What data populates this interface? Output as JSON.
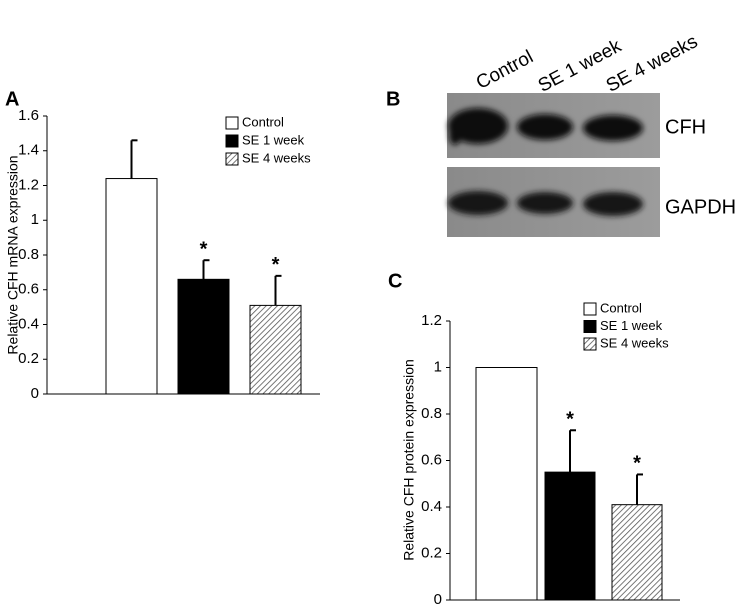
{
  "chart_data": [
    {
      "type": "bar",
      "panel_label": "A",
      "ylabel": "Relative CFH mRNA expression",
      "categories": [
        "Control",
        "SE 1 week",
        "SE 4 weeks"
      ],
      "values": [
        1.24,
        0.66,
        0.51
      ],
      "errors": [
        0.22,
        0.11,
        0.17
      ],
      "significance": [
        null,
        "*",
        "*"
      ],
      "colors": [
        "#ffffff",
        "#000000",
        "#ffffff"
      ],
      "hatch": [
        false,
        false,
        true
      ],
      "ylim": [
        0,
        1.6
      ],
      "yticks": [
        0,
        0.2,
        0.4,
        0.6,
        0.8,
        1,
        1.2,
        1.4,
        1.6
      ],
      "grid": false
    },
    {
      "type": "bar",
      "panel_label": "C",
      "ylabel": "Relative CFH protein expression",
      "categories": [
        "Control",
        "SE 1 week",
        "SE 4 weeks"
      ],
      "values": [
        1,
        0.55,
        0.41
      ],
      "errors": [
        null,
        0.18,
        0.13
      ],
      "significance": [
        null,
        "*",
        "*"
      ],
      "colors": [
        "#ffffff",
        "#000000",
        "#ffffff"
      ],
      "hatch": [
        false,
        false,
        true
      ],
      "ylim": [
        0,
        1.2
      ],
      "yticks": [
        0,
        0.2,
        0.4,
        0.6,
        0.8,
        1,
        1.2
      ],
      "grid": false
    }
  ],
  "blot": {
    "panel_label": "B",
    "lanes": [
      "Control",
      "SE 1 week",
      "SE 4 weeks"
    ],
    "bands": [
      "CFH",
      "GAPDH"
    ]
  }
}
